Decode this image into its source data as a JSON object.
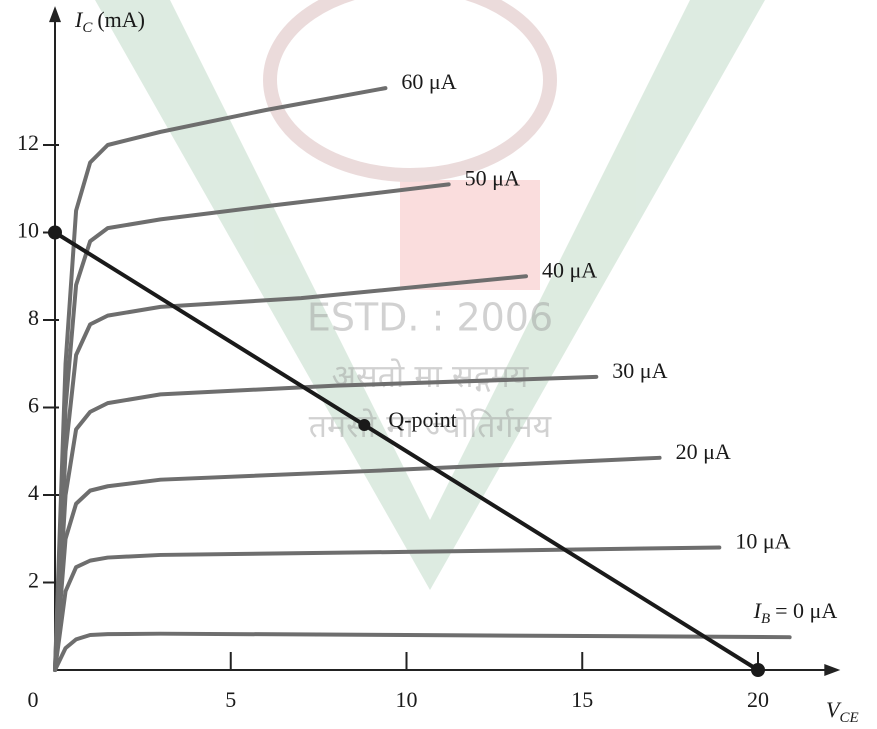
{
  "chart_data": {
    "type": "line",
    "y_label": {
      "symbol": "I",
      "subscript": "C",
      "unit": "(mA)"
    },
    "x_label": {
      "symbol": "V",
      "subscript": "CE"
    },
    "xlim": [
      0,
      22
    ],
    "ylim": [
      0,
      14.9
    ],
    "xticks": [
      0,
      5,
      10,
      15,
      20
    ],
    "yticks": [
      2,
      4,
      6,
      8,
      10,
      12
    ],
    "series": [
      {
        "name": "60 μA",
        "color": "#6e6e6e",
        "x": [
          0,
          0.3,
          0.6,
          1,
          1.5,
          3,
          6,
          9.4
        ],
        "values": [
          0,
          7,
          10.5,
          11.6,
          12,
          12.3,
          12.8,
          13.3
        ]
      },
      {
        "name": "50 μA",
        "color": "#6e6e6e",
        "x": [
          0,
          0.3,
          0.6,
          1,
          1.5,
          3,
          6,
          11.2
        ],
        "values": [
          0,
          6,
          8.8,
          9.8,
          10.1,
          10.3,
          10.6,
          11.1
        ]
      },
      {
        "name": "40 μA",
        "color": "#6e6e6e",
        "x": [
          0,
          0.3,
          0.6,
          1,
          1.5,
          3,
          7,
          13.4
        ],
        "values": [
          0,
          5,
          7.2,
          7.9,
          8.1,
          8.3,
          8.5,
          9.0
        ]
      },
      {
        "name": "30 μA",
        "color": "#6e6e6e",
        "x": [
          0,
          0.3,
          0.6,
          1,
          1.5,
          3,
          8,
          15.4
        ],
        "values": [
          0,
          4,
          5.5,
          5.9,
          6.1,
          6.3,
          6.5,
          6.7
        ]
      },
      {
        "name": "20 μA",
        "color": "#6e6e6e",
        "x": [
          0,
          0.3,
          0.6,
          1,
          1.5,
          3,
          9,
          17.2
        ],
        "values": [
          0,
          3,
          3.8,
          4.1,
          4.2,
          4.35,
          4.55,
          4.85
        ]
      },
      {
        "name": "10 μA",
        "color": "#6e6e6e",
        "x": [
          0,
          0.3,
          0.6,
          1,
          1.5,
          3,
          10,
          18.9
        ],
        "values": [
          0,
          1.8,
          2.35,
          2.5,
          2.57,
          2.63,
          2.7,
          2.8
        ]
      },
      {
        "color": "#6e6e6e",
        "x": [
          0,
          0.3,
          0.6,
          1,
          1.5,
          3,
          10,
          20.9
        ],
        "values": [
          0,
          0.5,
          0.7,
          0.8,
          0.82,
          0.83,
          0.8,
          0.75
        ]
      }
    ],
    "ib_label": {
      "symbol": "I",
      "subscript": "B",
      "text": "= 0 μA"
    },
    "load_line": {
      "color": "#1a1a1a",
      "x": [
        0,
        20
      ],
      "values": [
        10,
        0
      ]
    },
    "q_point": {
      "x": 8.8,
      "y": 5.6,
      "label": "Q-point"
    }
  },
  "watermark": [
    "ESTD. : 2006",
    "असतो मा सद्गमय",
    "तमसो मा ज्योतिर्गमय"
  ]
}
